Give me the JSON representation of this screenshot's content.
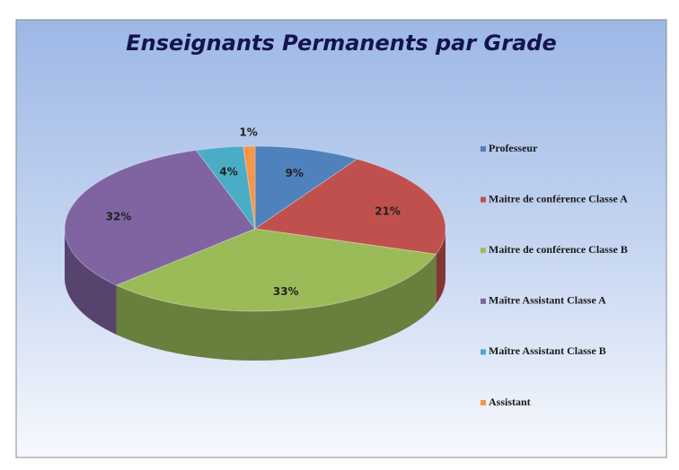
{
  "chart_data": {
    "type": "pie3d",
    "title": "Enseignants Permanents par Grade",
    "categories": [
      "Professeur",
      "Maitre de conférence Classe A",
      "Maitre de conférence Classe B",
      "Maître Assistant Classe A",
      "Maître Assistant Classe B",
      "Assistant"
    ],
    "values": [
      9,
      21,
      33,
      32,
      4,
      1
    ],
    "value_labels": [
      "9%",
      "21%",
      "33%",
      "32%",
      "4%",
      "1%"
    ],
    "colors": [
      "#4f81bd",
      "#c0504d",
      "#9bbb59",
      "#8064a2",
      "#4bacc6",
      "#f79646"
    ],
    "legend": "right"
  }
}
